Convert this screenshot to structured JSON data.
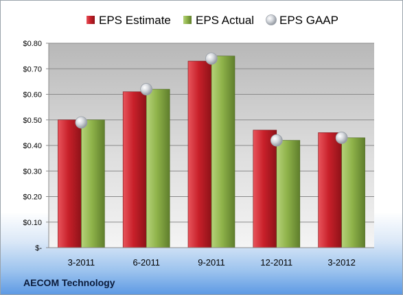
{
  "company_label": "AECOM Technology",
  "chart_data": {
    "type": "bar",
    "categories": [
      "3-2011",
      "6-2011",
      "9-2011",
      "12-2011",
      "3-2012"
    ],
    "series": [
      {
        "name": "EPS Estimate",
        "kind": "bar",
        "color": "#c8202a",
        "values": [
          0.5,
          0.61,
          0.73,
          0.46,
          0.45
        ]
      },
      {
        "name": "EPS Actual",
        "kind": "bar",
        "color": "#8fb34a",
        "values": [
          0.5,
          0.62,
          0.75,
          0.42,
          0.43
        ]
      },
      {
        "name": "EPS GAAP",
        "kind": "marker",
        "color": "#c9ccd2",
        "values": [
          0.49,
          0.62,
          0.74,
          0.42,
          0.43
        ]
      }
    ],
    "ylim": [
      0,
      0.8
    ],
    "y_ticks": [
      0,
      0.1,
      0.2,
      0.3,
      0.4,
      0.5,
      0.6,
      0.7,
      0.8
    ],
    "y_tick_labels": [
      "$-",
      "$0.10",
      "$0.20",
      "$0.30",
      "$0.40",
      "$0.50",
      "$0.60",
      "$0.70",
      "$0.80"
    ],
    "grid": true,
    "legend_position": "top"
  }
}
